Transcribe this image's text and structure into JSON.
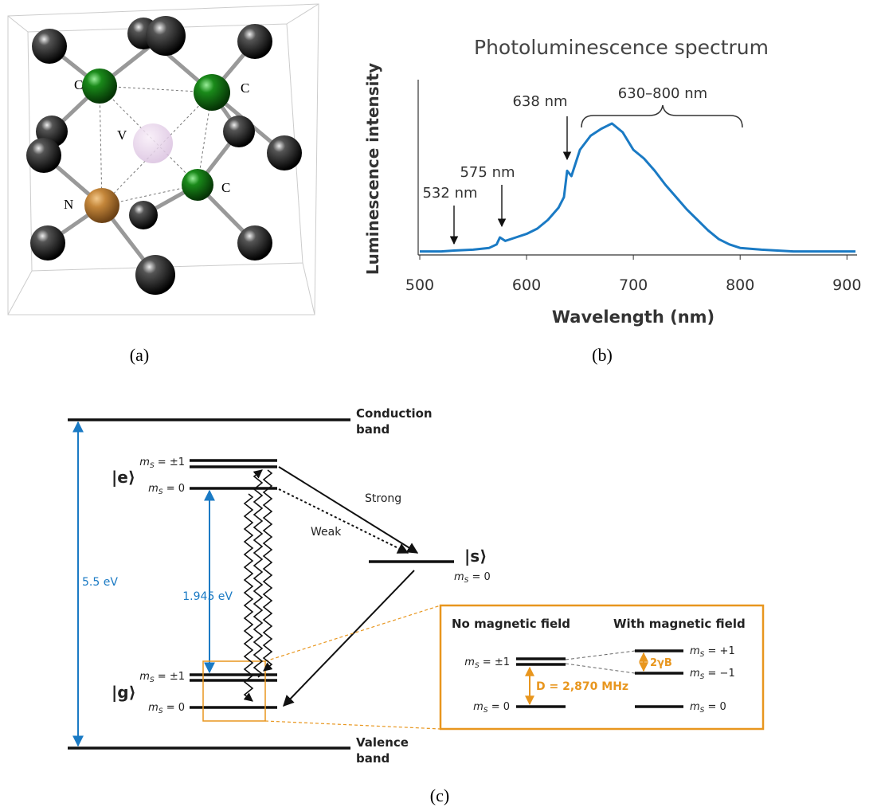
{
  "panel_a": {
    "atom_labels": [
      "C",
      "C",
      "V",
      "C",
      "N"
    ],
    "caption": "(a)"
  },
  "chart_data": {
    "type": "line",
    "title": "Photoluminescence spectrum",
    "x_label": "Wavelength (nm)",
    "y_label": "Luminescence intensity",
    "x": [
      500,
      520,
      532,
      550,
      565,
      572,
      575,
      580,
      590,
      600,
      610,
      620,
      630,
      635,
      638,
      642,
      650,
      660,
      670,
      680,
      690,
      700,
      710,
      720,
      730,
      740,
      750,
      760,
      770,
      780,
      790,
      800,
      820,
      850,
      900,
      908
    ],
    "values": [
      0.02,
      0.02,
      0.025,
      0.03,
      0.04,
      0.06,
      0.1,
      0.08,
      0.1,
      0.12,
      0.15,
      0.2,
      0.27,
      0.33,
      0.48,
      0.45,
      0.6,
      0.68,
      0.72,
      0.75,
      0.7,
      0.6,
      0.55,
      0.48,
      0.4,
      0.33,
      0.26,
      0.2,
      0.14,
      0.09,
      0.06,
      0.04,
      0.03,
      0.02,
      0.02,
      0.02
    ],
    "color": "#1a7ac4",
    "xlim": [
      500,
      908
    ],
    "xticks": [
      500,
      600,
      700,
      800,
      900
    ],
    "ylim": [
      0,
      1
    ],
    "annotations": [
      "532 nm",
      "575 nm",
      "638 nm",
      "630–800 nm"
    ],
    "caption": "(b)"
  },
  "panel_c": {
    "conduction": [
      "Conduction",
      "band"
    ],
    "valence": [
      "Valence",
      "band"
    ],
    "e": "|e⟩",
    "g": "|g⟩",
    "s": "|s⟩",
    "strong": "Strong",
    "weak": "Weak",
    "gap": "5.5 eV",
    "zpl": "1.945 eV",
    "ms_labels": [
      [
        "m",
        "S",
        " = ±1"
      ],
      [
        "m",
        "S",
        " = 0"
      ],
      [
        "m",
        "S",
        " = ±1"
      ],
      [
        "m",
        "S",
        " = 0"
      ],
      [
        "m",
        "S",
        " = 0"
      ],
      [
        "m",
        "S",
        " = ±1"
      ],
      [
        "m",
        "S",
        " = 0"
      ],
      [
        "m",
        "S",
        " = +1"
      ],
      [
        "m",
        "S",
        " = −1"
      ],
      [
        "m",
        "S",
        " = 0"
      ]
    ],
    "no_field": "No magnetic field",
    "with_field": "With magnetic field",
    "D": "D = 2,870 MHz",
    "zeeman": "2γB",
    "caption": "(c)"
  }
}
